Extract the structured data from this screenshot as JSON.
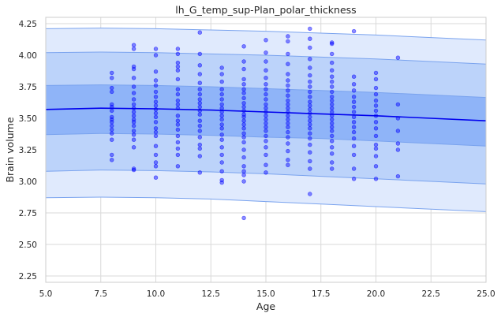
{
  "chart_data": {
    "type": "scatter",
    "title": "lh_G_temp_sup-Plan_polar_thickness",
    "xlabel": "Age",
    "ylabel": "Brain volume",
    "xlim": [
      5.0,
      25.0
    ],
    "ylim": [
      2.2,
      4.3
    ],
    "x_ticks": [
      "5.0",
      "7.5",
      "10.0",
      "12.5",
      "15.0",
      "17.5",
      "20.0",
      "22.5",
      "25.0"
    ],
    "y_ticks": [
      "2.25",
      "2.50",
      "2.75",
      "3.00",
      "3.25",
      "3.50",
      "3.75",
      "4.00",
      "4.25"
    ],
    "grid": true,
    "colors": {
      "points": "#0000ff",
      "mean_line": "#0000ee",
      "band_inner": "#8fb4f8",
      "band_middle": "#bcd3fa",
      "band_outer": "#e0eafd",
      "band_edge": "#7aa3ee",
      "grid": "#d9d9d9"
    },
    "bands": {
      "x": [
        5,
        7.5,
        10,
        12.5,
        15,
        17.5,
        20,
        22.5,
        25
      ],
      "mean": [
        3.57,
        3.58,
        3.575,
        3.565,
        3.55,
        3.535,
        3.52,
        3.5,
        3.48
      ],
      "inner_lo": [
        3.37,
        3.38,
        3.375,
        3.365,
        3.35,
        3.34,
        3.32,
        3.3,
        3.28
      ],
      "inner_hi": [
        3.76,
        3.765,
        3.76,
        3.75,
        3.735,
        3.72,
        3.705,
        3.685,
        3.665
      ],
      "mid_lo": [
        3.08,
        3.09,
        3.085,
        3.075,
        3.06,
        3.04,
        3.02,
        3.0,
        2.98
      ],
      "mid_hi": [
        4.02,
        4.025,
        4.02,
        4.01,
        4.0,
        3.985,
        3.97,
        3.95,
        3.93
      ],
      "outer_lo": [
        2.87,
        2.875,
        2.87,
        2.86,
        2.84,
        2.82,
        2.8,
        2.78,
        2.76
      ],
      "outer_hi": [
        4.21,
        4.215,
        4.21,
        4.2,
        4.19,
        4.175,
        4.16,
        4.14,
        4.12
      ]
    },
    "points": [
      [
        8,
        3.86
      ],
      [
        8,
        3.82
      ],
      [
        8,
        3.74
      ],
      [
        8,
        3.71
      ],
      [
        8,
        3.61
      ],
      [
        8,
        3.59
      ],
      [
        8,
        3.56
      ],
      [
        8,
        3.51
      ],
      [
        8,
        3.49
      ],
      [
        8,
        3.47
      ],
      [
        8,
        3.44
      ],
      [
        8,
        3.41
      ],
      [
        8,
        3.38
      ],
      [
        8,
        3.33
      ],
      [
        8,
        3.21
      ],
      [
        8,
        3.17
      ],
      [
        9,
        4.08
      ],
      [
        9,
        4.05
      ],
      [
        9,
        3.91
      ],
      [
        9,
        3.89
      ],
      [
        9,
        3.82
      ],
      [
        9,
        3.75
      ],
      [
        9,
        3.7
      ],
      [
        9,
        3.65
      ],
      [
        9,
        3.61
      ],
      [
        9,
        3.58
      ],
      [
        9,
        3.55
      ],
      [
        9,
        3.52
      ],
      [
        9,
        3.49
      ],
      [
        9,
        3.47
      ],
      [
        9,
        3.44
      ],
      [
        9,
        3.4
      ],
      [
        9,
        3.37
      ],
      [
        9,
        3.33
      ],
      [
        9,
        3.27
      ],
      [
        9,
        3.1
      ],
      [
        9,
        3.09
      ],
      [
        10,
        4.05
      ],
      [
        10,
        4.0
      ],
      [
        10,
        3.87
      ],
      [
        10,
        3.8
      ],
      [
        10,
        3.76
      ],
      [
        10,
        3.71
      ],
      [
        10,
        3.67
      ],
      [
        10,
        3.63
      ],
      [
        10,
        3.6
      ],
      [
        10,
        3.57
      ],
      [
        10,
        3.54
      ],
      [
        10,
        3.51
      ],
      [
        10,
        3.47
      ],
      [
        10,
        3.42
      ],
      [
        10,
        3.39
      ],
      [
        10,
        3.36
      ],
      [
        10,
        3.28
      ],
      [
        10,
        3.21
      ],
      [
        10,
        3.15
      ],
      [
        10,
        3.12
      ],
      [
        10,
        3.03
      ],
      [
        11,
        4.05
      ],
      [
        11,
        4.01
      ],
      [
        11,
        3.94
      ],
      [
        11,
        3.91
      ],
      [
        11,
        3.88
      ],
      [
        11,
        3.81
      ],
      [
        11,
        3.73
      ],
      [
        11,
        3.69
      ],
      [
        11,
        3.64
      ],
      [
        11,
        3.61
      ],
      [
        11,
        3.58
      ],
      [
        11,
        3.52
      ],
      [
        11,
        3.48
      ],
      [
        11,
        3.45
      ],
      [
        11,
        3.41
      ],
      [
        11,
        3.36
      ],
      [
        11,
        3.31
      ],
      [
        11,
        3.26
      ],
      [
        11,
        3.21
      ],
      [
        11,
        3.12
      ],
      [
        12,
        4.18
      ],
      [
        12,
        4.01
      ],
      [
        12,
        3.92
      ],
      [
        12,
        3.85
      ],
      [
        12,
        3.78
      ],
      [
        12,
        3.73
      ],
      [
        12,
        3.69
      ],
      [
        12,
        3.65
      ],
      [
        12,
        3.62
      ],
      [
        12,
        3.59
      ],
      [
        12,
        3.56
      ],
      [
        12,
        3.53
      ],
      [
        12,
        3.48
      ],
      [
        12,
        3.44
      ],
      [
        12,
        3.4
      ],
      [
        12,
        3.35
      ],
      [
        12,
        3.29
      ],
      [
        12,
        3.26
      ],
      [
        12,
        3.2
      ],
      [
        12,
        3.07
      ],
      [
        13,
        3.9
      ],
      [
        13,
        3.85
      ],
      [
        13,
        3.79
      ],
      [
        13,
        3.73
      ],
      [
        13,
        3.69
      ],
      [
        13,
        3.65
      ],
      [
        13,
        3.61
      ],
      [
        13,
        3.58
      ],
      [
        13,
        3.55
      ],
      [
        13,
        3.52
      ],
      [
        13,
        3.49
      ],
      [
        13,
        3.45
      ],
      [
        13,
        3.42
      ],
      [
        13,
        3.37
      ],
      [
        13,
        3.33
      ],
      [
        13,
        3.27
      ],
      [
        13,
        3.21
      ],
      [
        13,
        3.15
      ],
      [
        13,
        3.08
      ],
      [
        13,
        3.01
      ],
      [
        13,
        2.99
      ],
      [
        14,
        4.07
      ],
      [
        14,
        3.95
      ],
      [
        14,
        3.89
      ],
      [
        14,
        3.81
      ],
      [
        14,
        3.77
      ],
      [
        14,
        3.73
      ],
      [
        14,
        3.7
      ],
      [
        14,
        3.66
      ],
      [
        14,
        3.62
      ],
      [
        14,
        3.59
      ],
      [
        14,
        3.56
      ],
      [
        14,
        3.53
      ],
      [
        14,
        3.51
      ],
      [
        14,
        3.48
      ],
      [
        14,
        3.45
      ],
      [
        14,
        3.42
      ],
      [
        14,
        3.38
      ],
      [
        14,
        3.35
      ],
      [
        14,
        3.31
      ],
      [
        14,
        3.25
      ],
      [
        14,
        3.19
      ],
      [
        14,
        3.12
      ],
      [
        14,
        3.08
      ],
      [
        14,
        3.05
      ],
      [
        14,
        3.0
      ],
      [
        14,
        2.71
      ],
      [
        15,
        4.12
      ],
      [
        15,
        4.02
      ],
      [
        15,
        3.95
      ],
      [
        15,
        3.88
      ],
      [
        15,
        3.82
      ],
      [
        15,
        3.77
      ],
      [
        15,
        3.73
      ],
      [
        15,
        3.69
      ],
      [
        15,
        3.65
      ],
      [
        15,
        3.61
      ],
      [
        15,
        3.58
      ],
      [
        15,
        3.55
      ],
      [
        15,
        3.52
      ],
      [
        15,
        3.49
      ],
      [
        15,
        3.46
      ],
      [
        15,
        3.43
      ],
      [
        15,
        3.4
      ],
      [
        15,
        3.36
      ],
      [
        15,
        3.32
      ],
      [
        15,
        3.27
      ],
      [
        15,
        3.21
      ],
      [
        15,
        3.13
      ],
      [
        15,
        3.07
      ],
      [
        16,
        4.15
      ],
      [
        16,
        4.11
      ],
      [
        16,
        4.01
      ],
      [
        16,
        3.93
      ],
      [
        16,
        3.85
      ],
      [
        16,
        3.8
      ],
      [
        16,
        3.76
      ],
      [
        16,
        3.72
      ],
      [
        16,
        3.68
      ],
      [
        16,
        3.64
      ],
      [
        16,
        3.61
      ],
      [
        16,
        3.58
      ],
      [
        16,
        3.55
      ],
      [
        16,
        3.52
      ],
      [
        16,
        3.49
      ],
      [
        16,
        3.46
      ],
      [
        16,
        3.43
      ],
      [
        16,
        3.39
      ],
      [
        16,
        3.35
      ],
      [
        16,
        3.3
      ],
      [
        16,
        3.24
      ],
      [
        16,
        3.17
      ],
      [
        16,
        3.13
      ],
      [
        17,
        4.21
      ],
      [
        17,
        4.13
      ],
      [
        17,
        4.06
      ],
      [
        17,
        3.97
      ],
      [
        17,
        3.9
      ],
      [
        17,
        3.84
      ],
      [
        17,
        3.79
      ],
      [
        17,
        3.75
      ],
      [
        17,
        3.71
      ],
      [
        17,
        3.67
      ],
      [
        17,
        3.63
      ],
      [
        17,
        3.6
      ],
      [
        17,
        3.57
      ],
      [
        17,
        3.54
      ],
      [
        17,
        3.51
      ],
      [
        17,
        3.48
      ],
      [
        17,
        3.45
      ],
      [
        17,
        3.42
      ],
      [
        17,
        3.38
      ],
      [
        17,
        3.34
      ],
      [
        17,
        3.29
      ],
      [
        17,
        3.23
      ],
      [
        17,
        3.16
      ],
      [
        17,
        3.1
      ],
      [
        17,
        2.9
      ],
      [
        18,
        4.1
      ],
      [
        18,
        4.09
      ],
      [
        18,
        4.01
      ],
      [
        18,
        3.94
      ],
      [
        18,
        3.88
      ],
      [
        18,
        3.83
      ],
      [
        18,
        3.79
      ],
      [
        18,
        3.75
      ],
      [
        18,
        3.71
      ],
      [
        18,
        3.67
      ],
      [
        18,
        3.64
      ],
      [
        18,
        3.61
      ],
      [
        18,
        3.58
      ],
      [
        18,
        3.55
      ],
      [
        18,
        3.52
      ],
      [
        18,
        3.49
      ],
      [
        18,
        3.46
      ],
      [
        18,
        3.43
      ],
      [
        18,
        3.4
      ],
      [
        18,
        3.36
      ],
      [
        18,
        3.32
      ],
      [
        18,
        3.27
      ],
      [
        18,
        3.22
      ],
      [
        18,
        3.15
      ],
      [
        18,
        3.1
      ],
      [
        19,
        4.19
      ],
      [
        19,
        3.83
      ],
      [
        19,
        3.77
      ],
      [
        19,
        3.72
      ],
      [
        19,
        3.67
      ],
      [
        19,
        3.63
      ],
      [
        19,
        3.59
      ],
      [
        19,
        3.55
      ],
      [
        19,
        3.51
      ],
      [
        19,
        3.47
      ],
      [
        19,
        3.43
      ],
      [
        19,
        3.39
      ],
      [
        19,
        3.34
      ],
      [
        19,
        3.28
      ],
      [
        19,
        3.21
      ],
      [
        19,
        3.1
      ],
      [
        19,
        3.02
      ],
      [
        20,
        3.86
      ],
      [
        20,
        3.81
      ],
      [
        20,
        3.74
      ],
      [
        20,
        3.69
      ],
      [
        20,
        3.64
      ],
      [
        20,
        3.6
      ],
      [
        20,
        3.56
      ],
      [
        20,
        3.52
      ],
      [
        20,
        3.47
      ],
      [
        20,
        3.42
      ],
      [
        20,
        3.36
      ],
      [
        20,
        3.29
      ],
      [
        20,
        3.26
      ],
      [
        20,
        3.2
      ],
      [
        20,
        3.12
      ],
      [
        20,
        3.02
      ],
      [
        21,
        3.98
      ],
      [
        21,
        3.61
      ],
      [
        21,
        3.5
      ],
      [
        21,
        3.4
      ],
      [
        21,
        3.3
      ],
      [
        21,
        3.25
      ],
      [
        21,
        3.04
      ]
    ]
  }
}
